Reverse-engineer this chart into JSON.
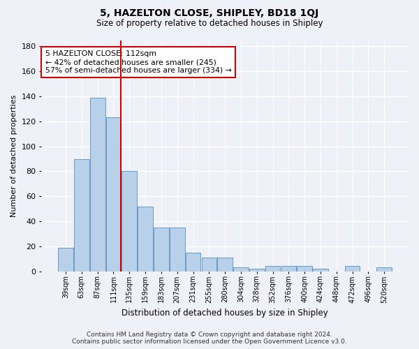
{
  "title": "5, HAZELTON CLOSE, SHIPLEY, BD18 1QJ",
  "subtitle": "Size of property relative to detached houses in Shipley",
  "xlabel": "Distribution of detached houses by size in Shipley",
  "ylabel": "Number of detached properties",
  "categories": [
    "39sqm",
    "63sqm",
    "87sqm",
    "111sqm",
    "135sqm",
    "159sqm",
    "183sqm",
    "207sqm",
    "231sqm",
    "255sqm",
    "280sqm",
    "304sqm",
    "328sqm",
    "352sqm",
    "376sqm",
    "400sqm",
    "424sqm",
    "448sqm",
    "472sqm",
    "496sqm",
    "520sqm"
  ],
  "values": [
    19,
    90,
    139,
    123,
    80,
    52,
    35,
    35,
    15,
    11,
    11,
    3,
    2,
    4,
    4,
    4,
    2,
    0,
    4,
    0,
    3
  ],
  "bar_color": "#b8d0e8",
  "bar_edge_color": "#6699cc",
  "background_color": "#eef2f8",
  "grid_color": "#ffffff",
  "vline_color": "#cc0000",
  "annotation_text": "5 HAZELTON CLOSE: 112sqm\n← 42% of detached houses are smaller (245)\n57% of semi-detached houses are larger (334) →",
  "annotation_box_color": "#ffffff",
  "annotation_box_edge": "#cc0000",
  "ylim": [
    0,
    185
  ],
  "yticks": [
    0,
    20,
    40,
    60,
    80,
    100,
    120,
    140,
    160,
    180
  ],
  "footer": "Contains HM Land Registry data © Crown copyright and database right 2024.\nContains public sector information licensed under the Open Government Licence v3.0.",
  "figsize": [
    6.0,
    5.0
  ],
  "dpi": 100
}
